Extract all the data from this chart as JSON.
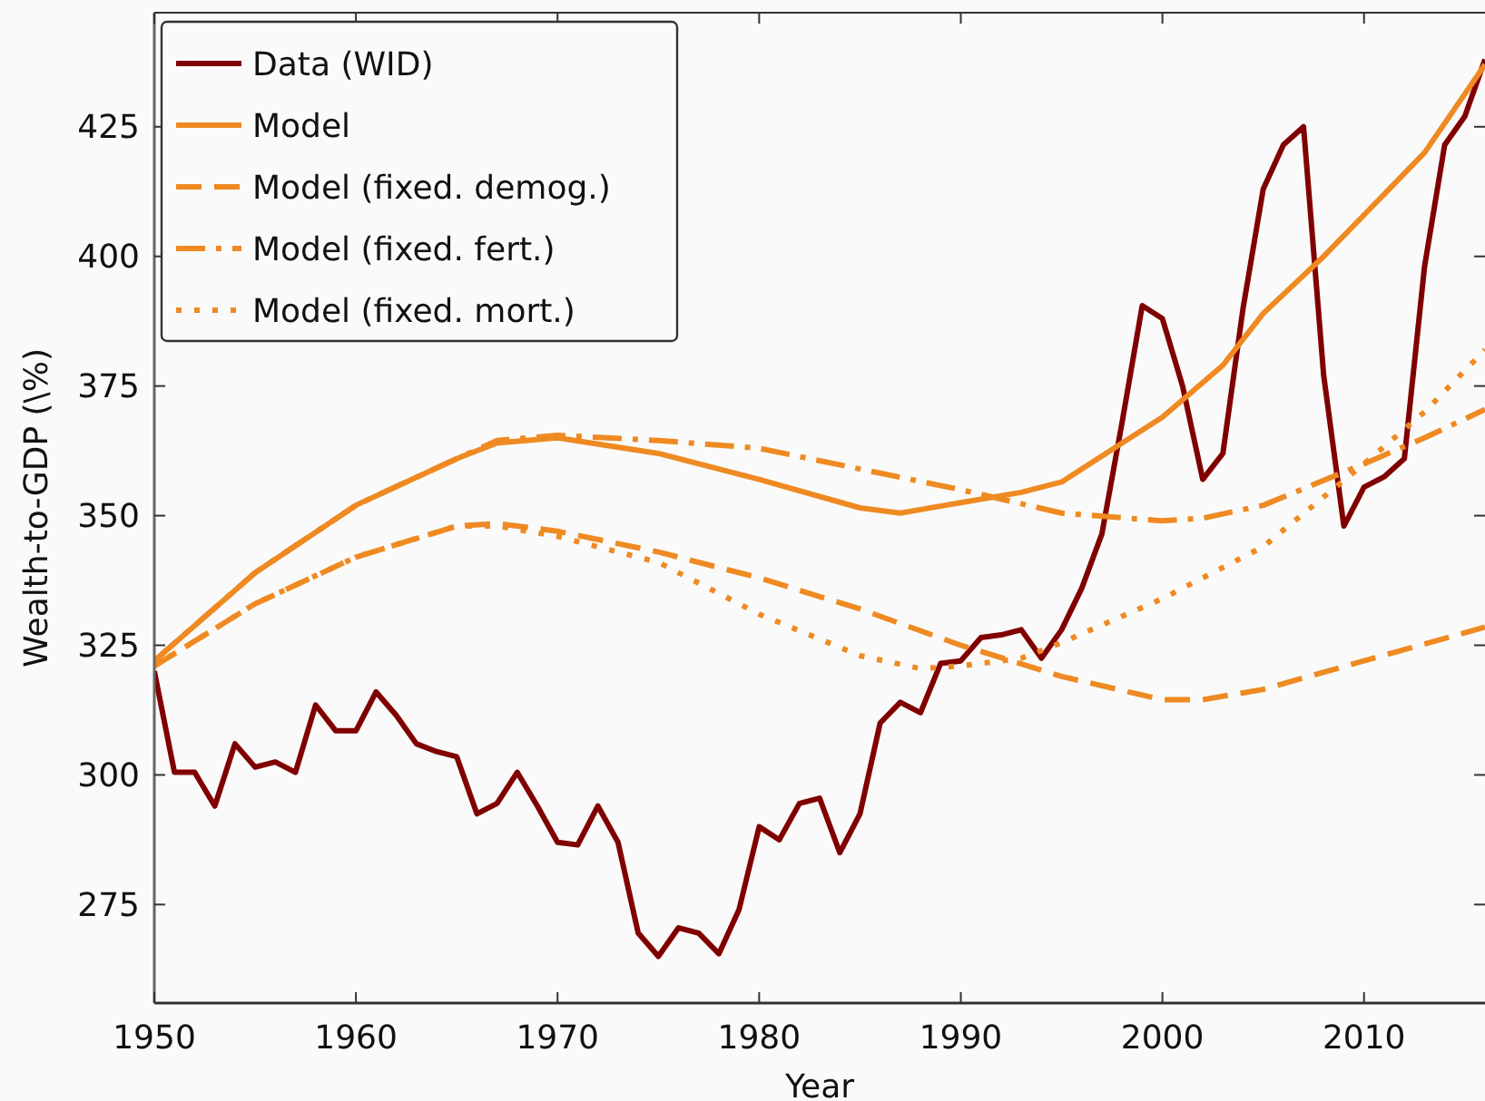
{
  "chart_data": {
    "type": "line",
    "xlabel": "Year",
    "ylabel": "Wealth-to-GDP (\\%)",
    "xlim": [
      1950,
      2016
    ],
    "xticks": [
      1950,
      1960,
      1970,
      1980,
      1990,
      2000,
      2010
    ],
    "ylim": [
      256,
      447
    ],
    "yticks": [
      275,
      300,
      325,
      350,
      375,
      400,
      425
    ],
    "grid": false,
    "legend": "top left",
    "series": [
      {
        "name": "Data (WID)",
        "color": "#800000",
        "line_style": "solid",
        "x": [
          1950,
          1951,
          1952,
          1953,
          1954,
          1955,
          1956,
          1957,
          1958,
          1959,
          1960,
          1961,
          1962,
          1963,
          1964,
          1965,
          1966,
          1967,
          1968,
          1969,
          1970,
          1971,
          1972,
          1973,
          1974,
          1975,
          1976,
          1977,
          1978,
          1979,
          1980,
          1981,
          1982,
          1983,
          1984,
          1985,
          1986,
          1987,
          1988,
          1989,
          1990,
          1991,
          1992,
          1993,
          1994,
          1995,
          1996,
          1997,
          1998,
          1999,
          2000,
          2001,
          2002,
          2003,
          2004,
          2005,
          2006,
          2007,
          2008,
          2009,
          2010,
          2011,
          2012,
          2013,
          2014,
          2015,
          2016
        ],
        "values": [
          320,
          300.5,
          300.5,
          294,
          306,
          301.5,
          302.5,
          300.5,
          313.5,
          308.5,
          308.5,
          316,
          311.5,
          306,
          304.5,
          303.5,
          292.5,
          294.5,
          300.5,
          294,
          287,
          286.5,
          294,
          287,
          269.5,
          265,
          270.5,
          269.5,
          265.5,
          274,
          290,
          287.5,
          294.5,
          295.5,
          285,
          292.5,
          310,
          314,
          312,
          321.5,
          322,
          326.5,
          327,
          328,
          322.5,
          328,
          336,
          346.5,
          368,
          390.5,
          388,
          375,
          357,
          362,
          390,
          413,
          421.5,
          425,
          377,
          348,
          355.5,
          357.5,
          361,
          398,
          421.5,
          427,
          438
        ]
      },
      {
        "name": "Model",
        "color": "#ef8a22",
        "line_style": "solid",
        "x": [
          1950,
          1955,
          1960,
          1965,
          1967,
          1970,
          1975,
          1980,
          1985,
          1987,
          1990,
          1993,
          1995,
          2000,
          2003,
          2005,
          2008,
          2010,
          2013,
          2016
        ],
        "values": [
          322,
          339,
          352,
          361,
          364,
          365,
          362,
          357,
          351.5,
          350.5,
          352.5,
          354.5,
          356.5,
          369,
          379,
          389,
          400,
          408,
          420,
          437
        ]
      },
      {
        "name": "Model (fixed. demog.)",
        "color": "#ef8a22",
        "line_style": "dashed",
        "x": [
          1950,
          1955,
          1960,
          1965,
          1967,
          1970,
          1975,
          1980,
          1985,
          1990,
          1995,
          2000,
          2002,
          2005,
          2010,
          2016
        ],
        "values": [
          321,
          333,
          342,
          348,
          348.5,
          347,
          343,
          338,
          332,
          325,
          319,
          314.5,
          314.5,
          316.5,
          322,
          328.5
        ]
      },
      {
        "name": "Model (fixed. fert.)",
        "color": "#ef8a22",
        "line_style": "dashdot",
        "x": [
          1950,
          1955,
          1960,
          1965,
          1967,
          1970,
          1975,
          1980,
          1985,
          1990,
          1995,
          2000,
          2002,
          2005,
          2010,
          2013,
          2016
        ],
        "values": [
          322,
          339,
          352,
          361,
          364.5,
          365.5,
          364.5,
          363,
          359,
          355,
          350.5,
          349,
          349.5,
          352,
          360,
          365,
          370.5
        ]
      },
      {
        "name": "Model (fixed. mort.)",
        "color": "#ef8a22",
        "line_style": "dotted",
        "x": [
          1950,
          1955,
          1960,
          1965,
          1967,
          1970,
          1975,
          1980,
          1985,
          1988,
          1990,
          1993,
          1995,
          2000,
          2005,
          2010,
          2013,
          2016
        ],
        "values": [
          321,
          333,
          342,
          348,
          348,
          346,
          341,
          331,
          323,
          320.5,
          321,
          322.5,
          325.5,
          334,
          344,
          360,
          370,
          382
        ]
      }
    ]
  }
}
